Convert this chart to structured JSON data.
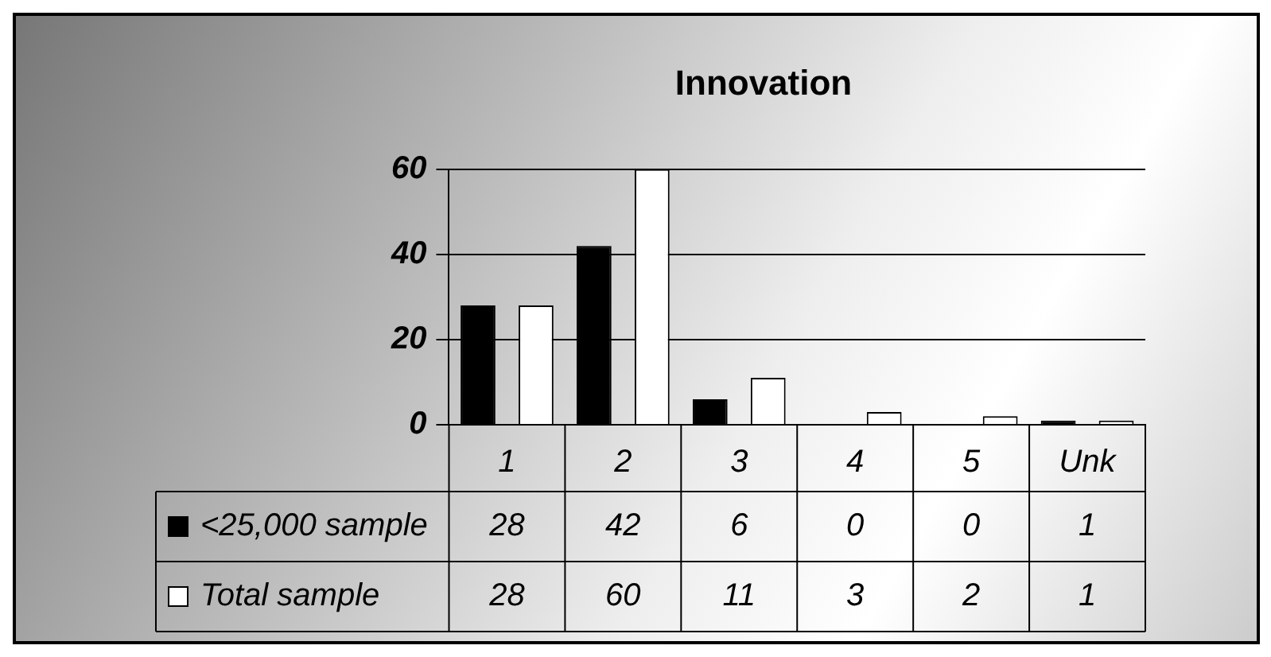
{
  "chart_data": {
    "type": "bar",
    "title": "Innovation",
    "categories": [
      "1",
      "2",
      "3",
      "4",
      "5",
      "Unk"
    ],
    "series": [
      {
        "name": "<25,000 sample",
        "color": "#000000",
        "values": [
          28,
          42,
          6,
          0,
          0,
          1
        ]
      },
      {
        "name": "Total sample",
        "color": "#ffffff",
        "values": [
          28,
          60,
          11,
          3,
          2,
          1
        ]
      }
    ],
    "ylim": [
      0,
      60
    ],
    "yticks": [
      0,
      20,
      40,
      60
    ],
    "grid": "y",
    "data_labels": true,
    "legend": "bottom"
  }
}
